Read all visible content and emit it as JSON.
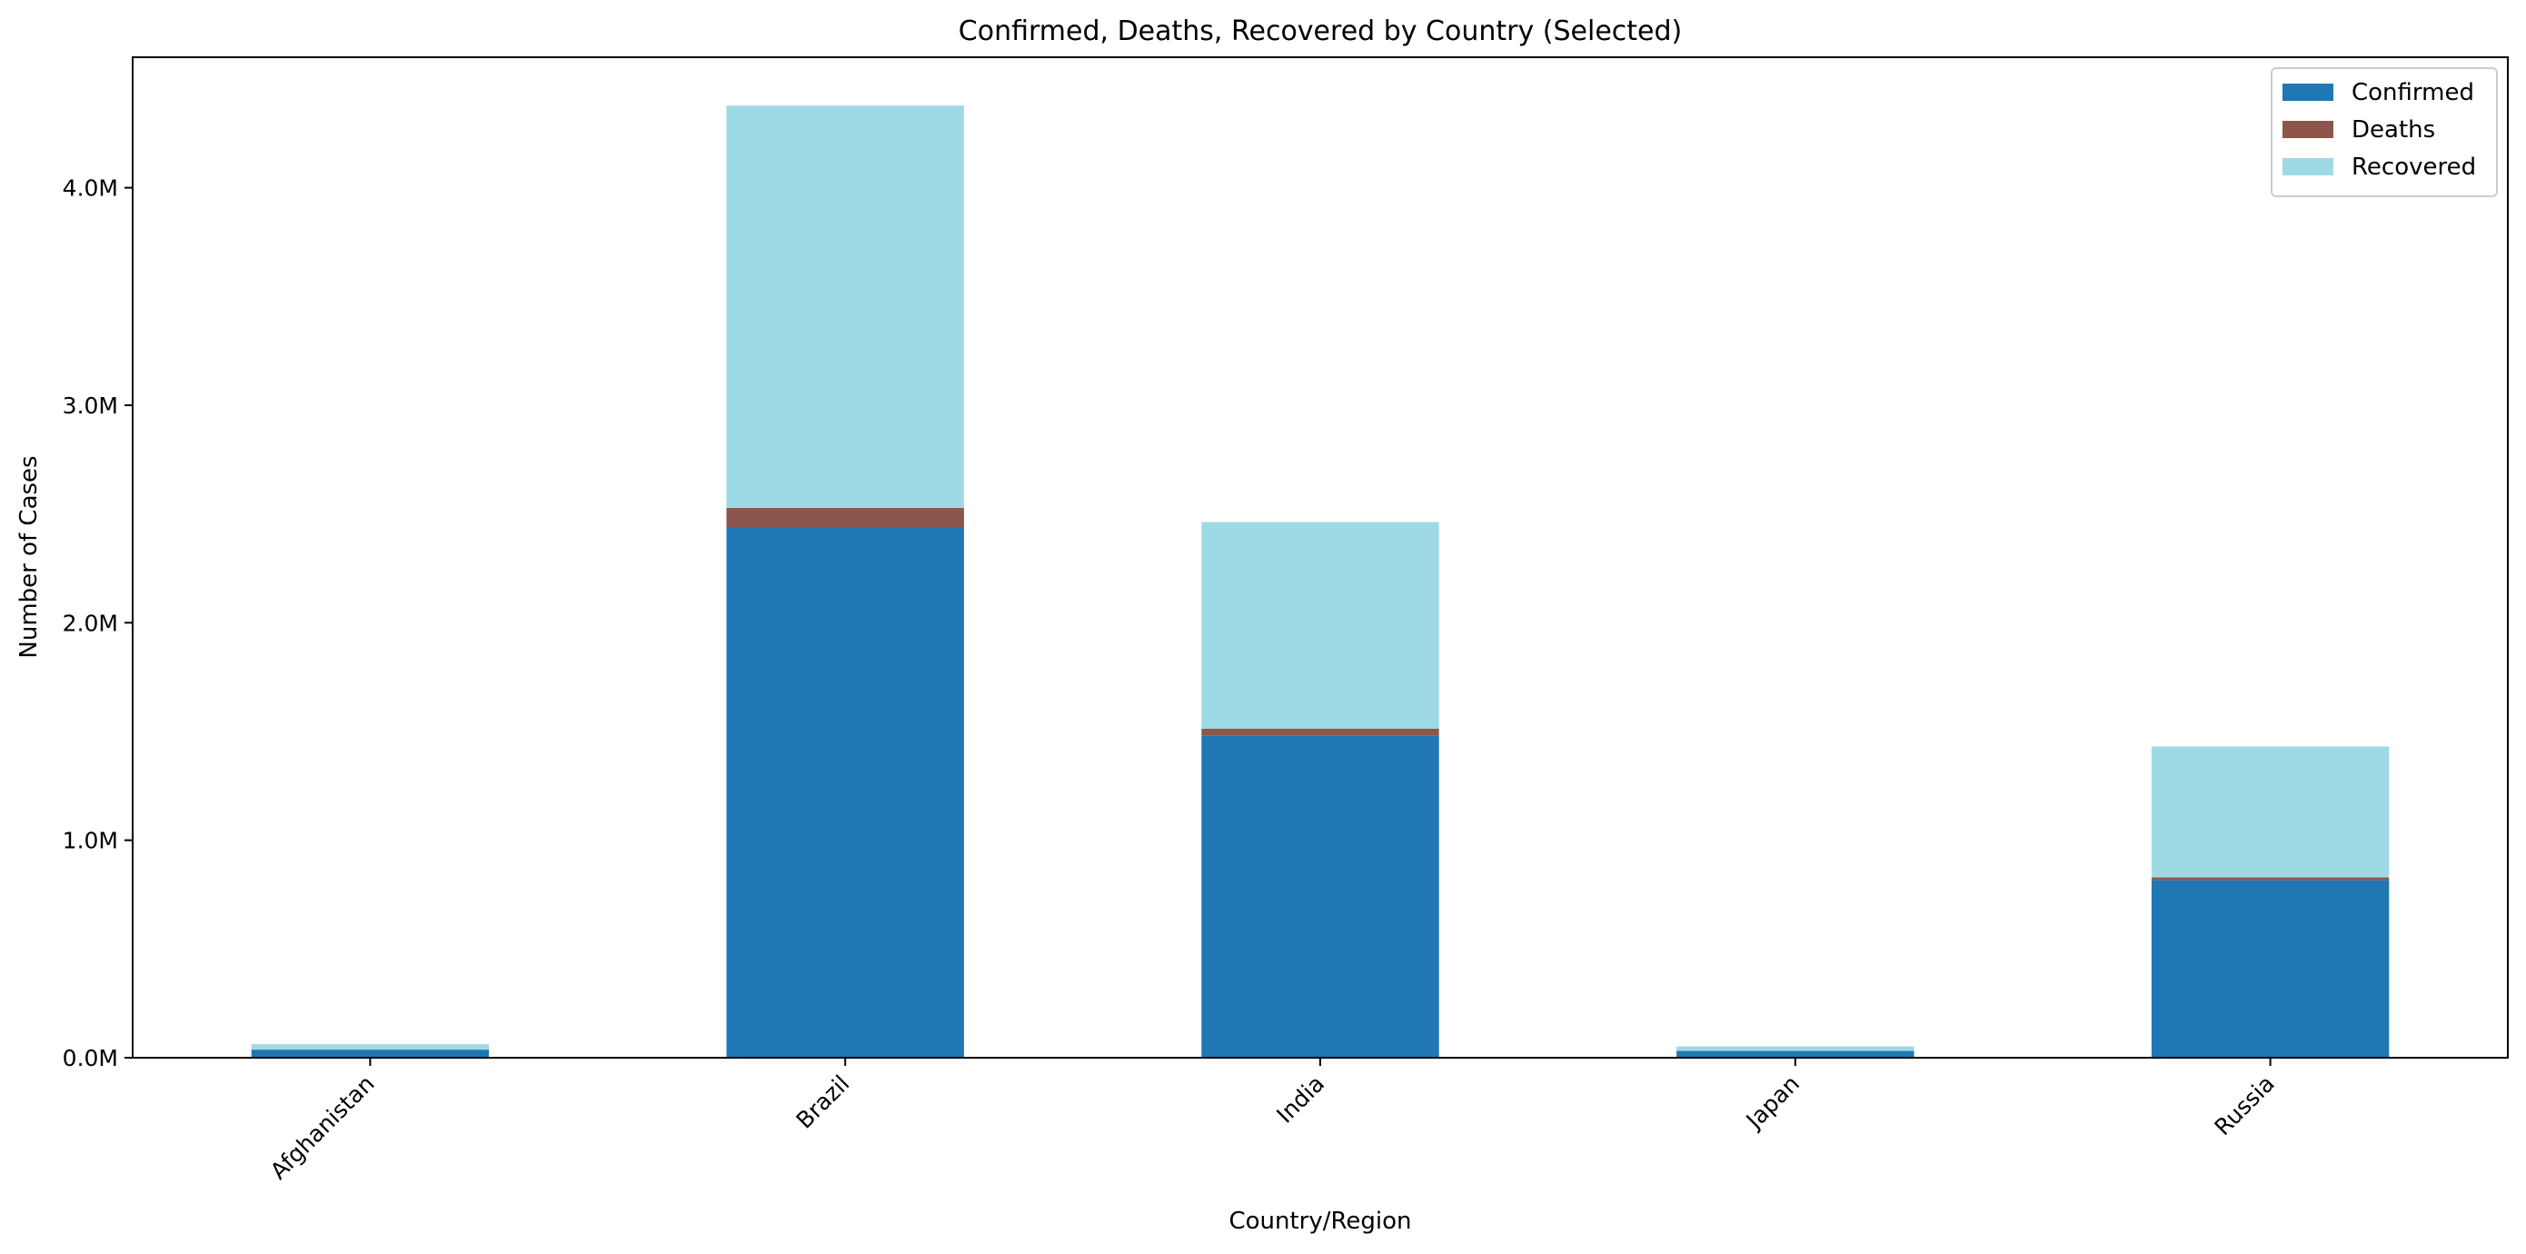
{
  "chart_data": {
    "type": "bar",
    "stacked": true,
    "title": "Confirmed, Deaths, Recovered by Country (Selected)",
    "xlabel": "Country/Region",
    "ylabel": "Number of Cases",
    "categories": [
      "Afghanistan",
      "Brazil",
      "India",
      "Japan",
      "Russia"
    ],
    "series": [
      {
        "name": "Confirmed",
        "color": "#1f77b4",
        "values": [
          36000,
          2440000,
          1480000,
          31000,
          816000
        ]
      },
      {
        "name": "Deaths",
        "color": "#8c564b",
        "values": [
          1300,
          88000,
          33000,
          1000,
          13000
        ]
      },
      {
        "name": "Recovered",
        "color": "#9edae5",
        "values": [
          25000,
          1850000,
          950000,
          20000,
          602000
        ]
      }
    ],
    "ylim": [
      0,
      4600000
    ],
    "yticks": [
      {
        "value": 0,
        "label": "0.0M"
      },
      {
        "value": 1000000,
        "label": "1.0M"
      },
      {
        "value": 2000000,
        "label": "2.0M"
      },
      {
        "value": 3000000,
        "label": "3.0M"
      },
      {
        "value": 4000000,
        "label": "4.0M"
      }
    ],
    "grid": false,
    "legend_position": "top-right"
  }
}
